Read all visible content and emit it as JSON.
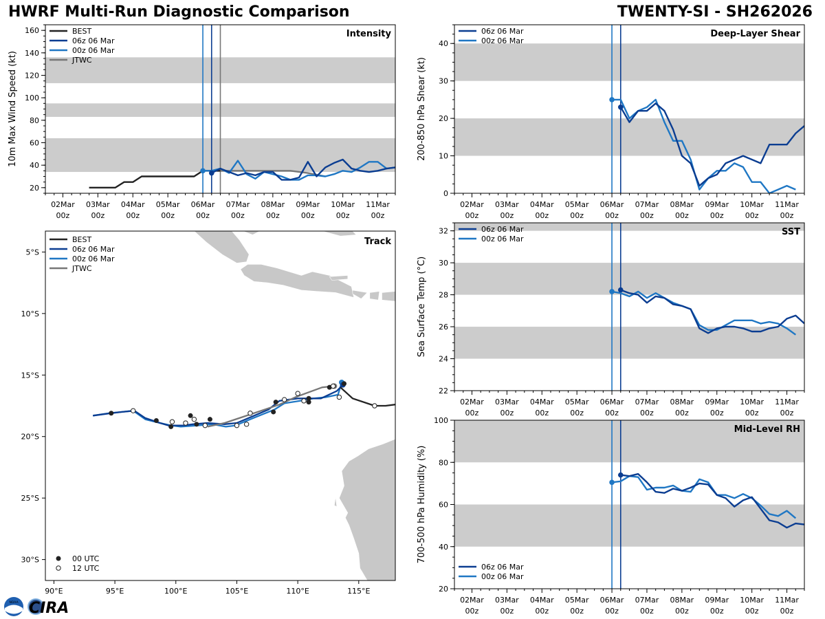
{
  "header": {
    "title_left": "HWRF Multi-Run Diagnostic Comparison",
    "title_right": "TWENTY-SI - SH262026"
  },
  "logo": {
    "text": "CIRA",
    "noaa_badge": "NOAA"
  },
  "colors": {
    "best": "#222222",
    "run06": "#0b3d91",
    "run00": "#1f77c4",
    "jtwc": "#777777",
    "band": "#cccccc",
    "land": "#c8c8c8"
  },
  "time_axis": {
    "ticks": [
      {
        "t": 0,
        "line1": "02Mar",
        "line2": "00z"
      },
      {
        "t": 24,
        "line1": "03Mar",
        "line2": "00z"
      },
      {
        "t": 48,
        "line1": "04Mar",
        "line2": "00z"
      },
      {
        "t": 72,
        "line1": "05Mar",
        "line2": "00z"
      },
      {
        "t": 96,
        "line1": "06Mar",
        "line2": "00z"
      },
      {
        "t": 120,
        "line1": "07Mar",
        "line2": "00z"
      },
      {
        "t": 144,
        "line1": "08Mar",
        "line2": "00z"
      },
      {
        "t": 168,
        "line1": "09Mar",
        "line2": "00z"
      },
      {
        "t": 192,
        "line1": "10Mar",
        "line2": "00z"
      },
      {
        "t": 216,
        "line1": "11Mar",
        "line2": "00z"
      }
    ],
    "range_hours": [
      -12,
      228
    ],
    "init_lines": [
      {
        "t": 96,
        "series": "run00"
      },
      {
        "t": 102,
        "series": "run06"
      },
      {
        "t": 108,
        "series": "jtwc"
      }
    ]
  },
  "chart_data": [
    {
      "id": "intensity",
      "type": "line",
      "title": "Intensity",
      "ylabel": "10m Max Wind Speed (kt)",
      "ylim": [
        15,
        165
      ],
      "yticks": [
        20,
        40,
        60,
        80,
        100,
        120,
        140,
        160
      ],
      "bands": [
        [
          34,
          64
        ],
        [
          83,
          95
        ],
        [
          113,
          136
        ]
      ],
      "legend": [
        "BEST",
        "06z 06 Mar",
        "00z 06 Mar",
        "JTWC"
      ],
      "legend_position": "top-left",
      "series": [
        {
          "name": "BEST",
          "key": "best",
          "x": [
            18,
            24,
            30,
            36,
            42,
            48,
            54,
            60,
            66,
            72,
            78,
            84,
            90,
            96,
            102,
            108
          ],
          "values": [
            20,
            20,
            20,
            20,
            25,
            25,
            30,
            30,
            30,
            30,
            30,
            30,
            30,
            35,
            35,
            35
          ]
        },
        {
          "name": "JTWC",
          "key": "jtwc",
          "x": [
            108,
            120,
            132,
            144,
            156,
            168,
            180
          ],
          "values": [
            35,
            35,
            35,
            35,
            35,
            33,
            30
          ]
        },
        {
          "name": "00z 06 Mar",
          "key": "run00",
          "x": [
            96,
            102,
            108,
            114,
            120,
            126,
            132,
            138,
            144,
            150,
            156,
            162,
            168,
            174,
            180,
            186,
            192,
            198,
            204,
            210,
            216,
            222,
            228
          ],
          "values": [
            35,
            35,
            37,
            33,
            44,
            32,
            28,
            34,
            32,
            30,
            27,
            27,
            31,
            31,
            30,
            32,
            35,
            34,
            38,
            43,
            43,
            37,
            38
          ]
        },
        {
          "name": "06z 06 Mar",
          "key": "run06",
          "x": [
            102,
            108,
            114,
            120,
            126,
            132,
            138,
            144,
            150,
            156,
            162,
            168,
            174,
            180,
            186,
            192,
            198,
            204,
            210,
            216,
            222,
            228
          ],
          "values": [
            33,
            37,
            34,
            31,
            33,
            31,
            34,
            34,
            27,
            27,
            29,
            43,
            30,
            38,
            42,
            45,
            37,
            35,
            34,
            35,
            37,
            38
          ]
        }
      ]
    },
    {
      "id": "shear",
      "type": "line",
      "title": "Deep-Layer Shear",
      "ylabel": "200-850 hPa Shear (kt)",
      "ylim": [
        0,
        45
      ],
      "yticks": [
        0,
        10,
        20,
        30,
        40
      ],
      "bands": [
        [
          10,
          20
        ],
        [
          30,
          40
        ]
      ],
      "legend": [
        "06z 06 Mar",
        "00z 06 Mar"
      ],
      "legend_position": "top-left",
      "series": [
        {
          "name": "00z 06 Mar",
          "key": "run00",
          "x": [
            96,
            102,
            108,
            114,
            120,
            126,
            132,
            138,
            144,
            150,
            156,
            162,
            168,
            174,
            180,
            186,
            192,
            198,
            204,
            210,
            216,
            222,
            228
          ],
          "values": [
            25,
            25,
            20,
            22,
            23,
            25,
            19,
            14,
            14,
            9,
            1,
            4,
            6,
            6,
            8,
            7,
            3,
            3,
            0,
            1,
            2,
            1,
            null
          ]
        },
        {
          "name": "06z 06 Mar",
          "key": "run06",
          "x": [
            102,
            108,
            114,
            120,
            126,
            132,
            138,
            144,
            150,
            156,
            162,
            168,
            174,
            180,
            186,
            192,
            198,
            204,
            210,
            216,
            222,
            228
          ],
          "values": [
            23,
            19,
            22,
            22,
            24,
            22,
            17,
            10,
            8,
            2,
            4,
            5,
            8,
            9,
            10,
            9,
            8,
            13,
            13,
            13,
            16,
            18
          ]
        }
      ]
    },
    {
      "id": "sst",
      "type": "line",
      "title": "SST",
      "ylabel": "Sea Surface Temp (°C)",
      "ylim": [
        22,
        32.5
      ],
      "yticks": [
        22,
        24,
        26,
        28,
        30,
        32
      ],
      "bands": [
        [
          24,
          26
        ],
        [
          28,
          30
        ],
        [
          32,
          33
        ]
      ],
      "legend": [
        "06z 06 Mar",
        "00z 06 Mar"
      ],
      "legend_position": "top-left",
      "series": [
        {
          "name": "00z 06 Mar",
          "key": "run00",
          "x": [
            96,
            102,
            108,
            114,
            120,
            126,
            132,
            138,
            144,
            150,
            156,
            162,
            168,
            174,
            180,
            186,
            192,
            198,
            204,
            210,
            216,
            222
          ],
          "values": [
            28.2,
            28.1,
            27.9,
            28.2,
            27.8,
            28.1,
            27.8,
            27.5,
            27.3,
            27.1,
            26.1,
            25.8,
            25.8,
            26.1,
            26.4,
            26.4,
            26.4,
            26.2,
            26.3,
            26.2,
            25.9,
            25.5
          ]
        },
        {
          "name": "06z 06 Mar",
          "key": "run06",
          "x": [
            102,
            108,
            114,
            120,
            126,
            132,
            138,
            144,
            150,
            156,
            162,
            168,
            174,
            180,
            186,
            192,
            198,
            204,
            210,
            216,
            222,
            228
          ],
          "values": [
            28.3,
            28.1,
            28.0,
            27.5,
            27.9,
            27.8,
            27.4,
            27.3,
            27.1,
            25.9,
            25.6,
            25.9,
            26.0,
            26.0,
            25.9,
            25.7,
            25.7,
            25.9,
            26.0,
            26.5,
            26.7,
            26.2
          ]
        }
      ]
    },
    {
      "id": "rh",
      "type": "line",
      "title": "Mid-Level RH",
      "ylabel": "700-500 hPa Humidity (%)",
      "ylim": [
        20,
        100
      ],
      "yticks": [
        20,
        40,
        60,
        80,
        100
      ],
      "bands": [
        [
          40,
          60
        ],
        [
          80,
          100
        ]
      ],
      "legend": [
        "06z 06 Mar",
        "00z 06 Mar"
      ],
      "legend_position": "bottom-left",
      "series": [
        {
          "name": "00z 06 Mar",
          "key": "run00",
          "x": [
            96,
            102,
            108,
            114,
            120,
            126,
            132,
            138,
            144,
            150,
            156,
            162,
            168,
            174,
            180,
            186,
            192,
            198,
            204,
            210,
            216,
            222
          ],
          "values": [
            70.5,
            71,
            73.5,
            73,
            67,
            68,
            68,
            69,
            66.5,
            66,
            72,
            70.5,
            64.5,
            64.5,
            63,
            65,
            63,
            59.5,
            55.5,
            54.5,
            57,
            53.5
          ]
        },
        {
          "name": "06z 06 Mar",
          "key": "run06",
          "x": [
            102,
            108,
            114,
            120,
            126,
            132,
            138,
            144,
            150,
            156,
            162,
            168,
            174,
            180,
            186,
            192,
            198,
            204,
            210,
            216,
            222,
            228
          ],
          "values": [
            74,
            73.5,
            74.5,
            70.5,
            66,
            65.5,
            67.5,
            66.5,
            68,
            70,
            69.5,
            64.5,
            63,
            59,
            62,
            63.5,
            58,
            52.5,
            51.5,
            49,
            51,
            50.5
          ]
        }
      ]
    },
    {
      "id": "track",
      "type": "scatter",
      "title": "Track",
      "xlim": [
        89.3,
        118
      ],
      "ylim": [
        -31.7,
        -3.3
      ],
      "xticks": [
        90,
        95,
        100,
        105,
        110,
        115
      ],
      "xtick_labels": [
        "90°E",
        "95°E",
        "100°E",
        "105°E",
        "110°E",
        "115°E"
      ],
      "yticks": [
        -5,
        -10,
        -15,
        -20,
        -25,
        -30
      ],
      "ytick_labels": [
        "5°S",
        "10°S",
        "15°S",
        "20°S",
        "25°S",
        "30°S"
      ],
      "legend": [
        "BEST",
        "06z 06 Mar",
        "00z 06 Mar",
        "JTWC"
      ],
      "legend_position": "top-left",
      "marker_legend": [
        "00 UTC",
        "12 UTC"
      ],
      "marker_legend_position": "bottom-left",
      "series": [
        {
          "name": "00z 06 Mar",
          "key": "run00",
          "lon": [
            113.6,
            113.3,
            112.3,
            111.3,
            110.2,
            108.9,
            108.1,
            106.6,
            105.6,
            104.9,
            104.1,
            103.0,
            101.8,
            100.4,
            99.6,
            98.7,
            97.5,
            96.5,
            95.6,
            94.6,
            93.2
          ],
          "lat": [
            -15.6,
            -16.6,
            -16.8,
            -16.9,
            -17.1,
            -17.3,
            -17.8,
            -18.4,
            -18.8,
            -19.1,
            -19.2,
            -19.0,
            -19.1,
            -19.2,
            -19.1,
            -18.9,
            -18.6,
            -17.9,
            -18.0,
            -18.1,
            -18.3
          ]
        },
        {
          "name": "06z 06 Mar",
          "key": "run06",
          "lon": [
            113.7,
            113.2,
            111.9,
            110.9,
            110.0,
            108.5,
            107.6,
            106.2,
            105.0,
            104.0,
            102.6,
            101.4,
            100.6,
            99.4,
            98.7,
            97.5,
            96.6,
            95.6,
            94.7,
            93.2
          ],
          "lat": [
            -15.8,
            -16.3,
            -16.9,
            -16.9,
            -16.9,
            -17.1,
            -17.8,
            -18.4,
            -18.9,
            -19.0,
            -18.9,
            -19.0,
            -19.1,
            -19.1,
            -18.9,
            -18.5,
            -17.9,
            -18.0,
            -18.1,
            -18.3
          ]
        },
        {
          "name": "JTWC",
          "key": "jtwc",
          "lon": [
            113.0,
            112.0,
            110.9,
            109.8,
            108.5,
            107.0,
            105.5,
            104.0,
            102.6
          ],
          "lat": [
            -15.9,
            -16.0,
            -16.4,
            -16.8,
            -17.4,
            -17.9,
            -18.4,
            -18.9,
            -19.2
          ]
        },
        {
          "name": "BEST",
          "key": "best",
          "lon": [
            113.5,
            114.5,
            116.3,
            117.2,
            118.0
          ],
          "lat": [
            -16.0,
            -16.9,
            -17.5,
            -17.5,
            -17.4
          ]
        }
      ],
      "points_00utc": {
        "lon": [
          94.7,
          98.4,
          99.6,
          101.2,
          101.7,
          102.8,
          108.0,
          108.2,
          110.9,
          110.9,
          112.6,
          113.8
        ],
        "lat": [
          -18.1,
          -18.7,
          -19.2,
          -18.3,
          -19.0,
          -18.6,
          -18.0,
          -17.2,
          -16.9,
          -17.2,
          -16.0,
          -15.7
        ]
      },
      "points_12utc": {
        "lon": [
          96.5,
          99.7,
          100.8,
          101.5,
          102.4,
          105.0,
          105.8,
          106.1,
          108.9,
          110.0,
          110.5,
          112.9,
          113.4,
          116.3
        ],
        "lat": [
          -17.9,
          -18.8,
          -18.9,
          -18.6,
          -19.1,
          -19.1,
          -19.0,
          -18.1,
          -17.0,
          -16.5,
          -17.1,
          -15.9,
          -16.8,
          -17.5
        ]
      }
    }
  ]
}
